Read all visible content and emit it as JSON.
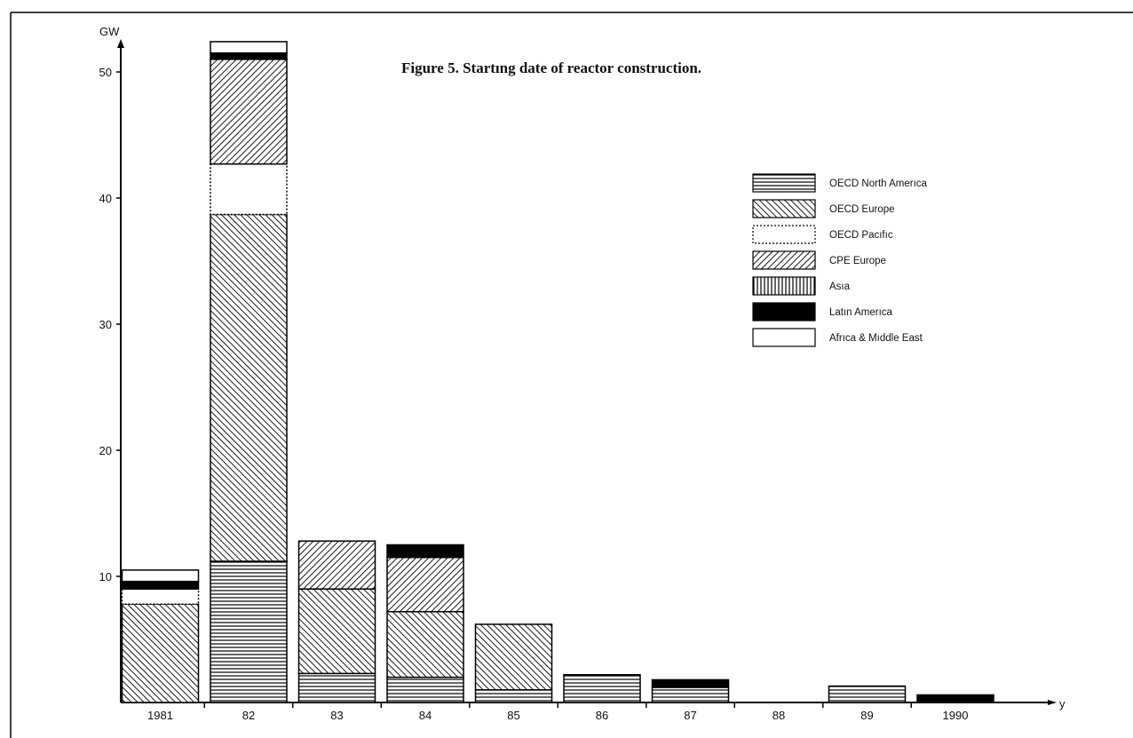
{
  "chart_data": {
    "type": "bar",
    "stacked": true,
    "title": "Figure 5. Startıng date of reactor construction.",
    "ylabel": "GW",
    "xlabel": "y",
    "ylim": [
      0,
      53
    ],
    "yticks": [
      10,
      20,
      30,
      40,
      50
    ],
    "categories": [
      "1981",
      "82",
      "83",
      "84",
      "85",
      "86",
      "87",
      "88",
      "89",
      "1990"
    ],
    "series": [
      {
        "name": "OECD North Amerıca",
        "pattern": "horizontal",
        "values": [
          0,
          11.2,
          2.3,
          2.0,
          1.0,
          2.2,
          1.2,
          0,
          1.3,
          0
        ]
      },
      {
        "name": "OECD Europe",
        "pattern": "diagonal",
        "values": [
          7.8,
          27.5,
          6.7,
          5.2,
          5.2,
          0,
          0,
          0,
          0,
          0
        ]
      },
      {
        "name": "OECD Pacıfıc",
        "pattern": "dotted",
        "values": [
          1.2,
          4.0,
          0,
          0,
          0,
          0,
          0,
          0,
          0,
          0
        ]
      },
      {
        "name": "CPE Europe",
        "pattern": "backdiagonal",
        "values": [
          0,
          8.3,
          3.8,
          4.3,
          0,
          0,
          0,
          0,
          0,
          0
        ]
      },
      {
        "name": "Asıa",
        "pattern": "vertical",
        "values": [
          0,
          0,
          0,
          0,
          0,
          0,
          0,
          0,
          0,
          0
        ]
      },
      {
        "name": "Latın Amerıca",
        "pattern": "solid",
        "values": [
          0.6,
          0.5,
          0,
          1.0,
          0,
          0,
          0.6,
          0,
          0,
          0.6
        ]
      },
      {
        "name": "Afrıca & Mıddle East",
        "pattern": "empty",
        "values": [
          0.9,
          0.9,
          0,
          0,
          0,
          0,
          0,
          0,
          0,
          0
        ]
      }
    ],
    "grid": false,
    "legend_position": "right"
  }
}
